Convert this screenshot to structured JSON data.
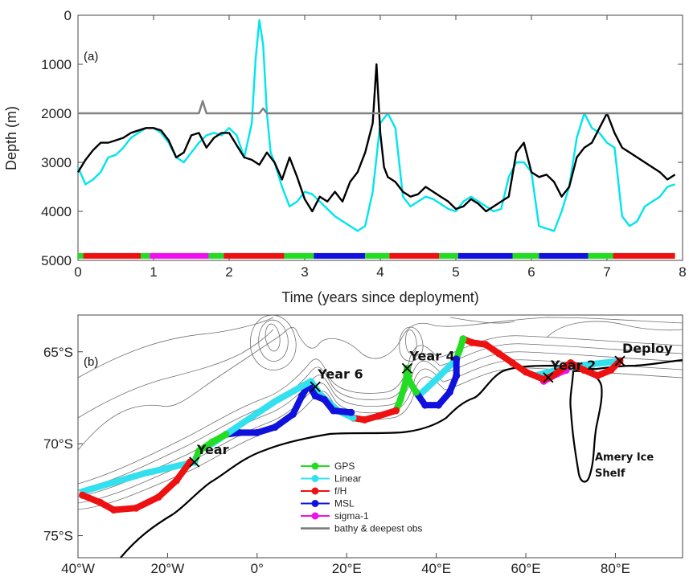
{
  "chart_data": [
    {
      "panel": "(a)",
      "type": "line",
      "xlabel": "Time (years since deployment)",
      "ylabel": "Depth (m)",
      "xlim": [
        0,
        8
      ],
      "ylim": [
        0,
        5000
      ],
      "y_reversed": true,
      "x_ticks": [
        "0",
        "1",
        "2",
        "3",
        "4",
        "5",
        "6",
        "7",
        "8"
      ],
      "y_ticks": [
        "0",
        "1000",
        "2000",
        "3000",
        "4000",
        "5000"
      ],
      "series": [
        {
          "color": "#00e5ee",
          "x": [
            0,
            0.1,
            0.2,
            0.3,
            0.4,
            0.5,
            0.6,
            0.7,
            0.8,
            0.9,
            1.0,
            1.1,
            1.2,
            1.3,
            1.4,
            1.5,
            1.6,
            1.7,
            1.8,
            1.9,
            2.0,
            2.1,
            2.2,
            2.3,
            2.35,
            2.4,
            2.45,
            2.5,
            2.55,
            2.6,
            2.7,
            2.8,
            2.9,
            3.0,
            3.1,
            3.2,
            3.3,
            3.4,
            3.5,
            3.6,
            3.7,
            3.8,
            3.9,
            4.0,
            4.1,
            4.2,
            4.3,
            4.4,
            4.5,
            4.6,
            4.7,
            4.8,
            4.9,
            5.0,
            5.1,
            5.2,
            5.3,
            5.4,
            5.5,
            5.6,
            5.7,
            5.8,
            5.9,
            6.0,
            6.1,
            6.2,
            6.3,
            6.4,
            6.5,
            6.6,
            6.7,
            6.8,
            6.9,
            7.0,
            7.1,
            7.2,
            7.3,
            7.4,
            7.5,
            7.6,
            7.7,
            7.8,
            7.9
          ],
          "y": [
            3100,
            3450,
            3350,
            3200,
            2900,
            2850,
            2700,
            2500,
            2400,
            2300,
            2300,
            2400,
            2600,
            2900,
            3000,
            2800,
            2600,
            2450,
            2400,
            2450,
            2300,
            2450,
            2900,
            2200,
            900,
            100,
            600,
            2000,
            2800,
            3000,
            3500,
            3900,
            3800,
            3600,
            3650,
            3800,
            3950,
            4100,
            4200,
            4300,
            4400,
            4300,
            3600,
            2200,
            2000,
            2300,
            3700,
            3900,
            3800,
            3700,
            3750,
            3850,
            3950,
            4000,
            3800,
            3700,
            3800,
            3900,
            4000,
            3950,
            3300,
            3000,
            3000,
            3200,
            4300,
            4350,
            4400,
            4000,
            3500,
            2500,
            2000,
            2300,
            2400,
            2600,
            2700,
            4100,
            4300,
            4200,
            3900,
            3800,
            3700,
            3500,
            3450
          ]
        },
        {
          "color": "#000000",
          "x": [
            0,
            0.1,
            0.2,
            0.3,
            0.4,
            0.5,
            0.6,
            0.7,
            0.8,
            0.9,
            1.0,
            1.1,
            1.2,
            1.3,
            1.4,
            1.5,
            1.6,
            1.7,
            1.8,
            1.9,
            2.0,
            2.1,
            2.2,
            2.3,
            2.4,
            2.5,
            2.6,
            2.7,
            2.8,
            2.9,
            3.0,
            3.1,
            3.2,
            3.3,
            3.4,
            3.5,
            3.6,
            3.7,
            3.8,
            3.9,
            3.95,
            4.0,
            4.05,
            4.1,
            4.2,
            4.3,
            4.4,
            4.5,
            4.6,
            4.7,
            4.8,
            4.9,
            5.0,
            5.1,
            5.2,
            5.3,
            5.4,
            5.5,
            5.6,
            5.7,
            5.8,
            5.9,
            6.0,
            6.1,
            6.2,
            6.3,
            6.4,
            6.5,
            6.6,
            6.7,
            6.8,
            6.9,
            7.0,
            7.1,
            7.2,
            7.3,
            7.4,
            7.5,
            7.6,
            7.7,
            7.8,
            7.9
          ],
          "y": [
            3200,
            2950,
            2750,
            2600,
            2600,
            2550,
            2500,
            2400,
            2350,
            2300,
            2300,
            2350,
            2550,
            2900,
            2800,
            2450,
            2400,
            2700,
            2500,
            2400,
            2400,
            2650,
            2900,
            2950,
            3050,
            2800,
            3000,
            3350,
            2900,
            3300,
            3750,
            4000,
            3700,
            3800,
            3600,
            3800,
            3400,
            3200,
            2800,
            2200,
            1000,
            2400,
            3100,
            3300,
            3400,
            3600,
            3700,
            3650,
            3500,
            3600,
            3700,
            3800,
            3950,
            3900,
            3750,
            3850,
            4000,
            3900,
            3800,
            3700,
            2800,
            2600,
            3200,
            3300,
            3250,
            3400,
            3700,
            3500,
            2900,
            2700,
            2600,
            2300,
            2000,
            2400,
            2700,
            2800,
            2900,
            3000,
            3100,
            3200,
            3350,
            3250
          ]
        },
        {
          "color": "#808080",
          "x": [
            0,
            1.6,
            1.65,
            1.7,
            1.75,
            2.4,
            2.45,
            2.5,
            8
          ],
          "y": [
            2000,
            2000,
            1750,
            2000,
            2000,
            2000,
            1900,
            2000,
            2000
          ]
        }
      ],
      "mode_bar": {
        "depth": 4900,
        "segments": [
          {
            "start": 0.0,
            "end": 0.07,
            "color": "#22dd22"
          },
          {
            "start": 0.07,
            "end": 0.83,
            "color": "#ee1111"
          },
          {
            "start": 0.83,
            "end": 0.95,
            "color": "#22dd22"
          },
          {
            "start": 0.95,
            "end": 1.73,
            "color": "#ee11ee"
          },
          {
            "start": 1.73,
            "end": 1.93,
            "color": "#22dd22"
          },
          {
            "start": 1.93,
            "end": 2.73,
            "color": "#ee1111"
          },
          {
            "start": 2.73,
            "end": 3.12,
            "color": "#22dd22"
          },
          {
            "start": 3.12,
            "end": 3.8,
            "color": "#1111dd"
          },
          {
            "start": 3.8,
            "end": 4.12,
            "color": "#22dd22"
          },
          {
            "start": 4.12,
            "end": 4.78,
            "color": "#ee1111"
          },
          {
            "start": 4.78,
            "end": 5.03,
            "color": "#22dd22"
          },
          {
            "start": 5.03,
            "end": 5.75,
            "color": "#1111dd"
          },
          {
            "start": 5.75,
            "end": 6.1,
            "color": "#22dd22"
          },
          {
            "start": 6.1,
            "end": 6.75,
            "color": "#1111dd"
          },
          {
            "start": 6.75,
            "end": 7.08,
            "color": "#22dd22"
          },
          {
            "start": 7.08,
            "end": 7.9,
            "color": "#ee1111"
          }
        ]
      }
    },
    {
      "panel": "(b)",
      "type": "scatter",
      "xlim": [
        -40,
        95
      ],
      "ylim": [
        -76.2,
        -63.0
      ],
      "x_ticks": [
        "40°W",
        "20°W",
        "0°",
        "20°E",
        "40°E",
        "60°E",
        "80°E"
      ],
      "y_ticks": [
        "65°S",
        "70°S",
        "75°S"
      ],
      "annotations": [
        "Deploy",
        "Year 2",
        "Year 4",
        "Year 6",
        "Year",
        "Amery Ice\nShelf"
      ],
      "markers": [
        {
          "label": "Deploy",
          "lon": 81,
          "lat": -65.5
        },
        {
          "label": "Year 2",
          "lon": 65,
          "lat": -66.4
        },
        {
          "label": "Year 4",
          "lon": 33.5,
          "lat": -65.9
        },
        {
          "label": "Year 6",
          "lon": 13,
          "lat": -66.9
        },
        {
          "label": "Year",
          "lon": -14,
          "lat": -71.0
        }
      ],
      "legend": [
        {
          "label": "GPS",
          "color": "#22dd22",
          "style": "marker"
        },
        {
          "label": "Linear",
          "color": "#33e0ee",
          "style": "marker"
        },
        {
          "label": "f/H",
          "color": "#ee1111",
          "style": "marker"
        },
        {
          "label": "MSL",
          "color": "#1111dd",
          "style": "marker"
        },
        {
          "label": "sigma-1",
          "color": "#ee11ee",
          "style": "marker"
        },
        {
          "label": "bathy & deepest obs",
          "color": "#777777",
          "style": "line"
        }
      ],
      "track": [
        {
          "mode": "linear",
          "color": "#33e0ee",
          "pts": [
            [
              81,
              -65.5
            ],
            [
              70,
              -65.8
            ],
            [
              62,
              -66.3
            ]
          ]
        },
        {
          "mode": "sigma1",
          "color": "#ee11ee",
          "pts": [
            [
              64,
              -66.6
            ],
            [
              67,
              -66.2
            ],
            [
              69,
              -66.0
            ]
          ]
        },
        {
          "mode": "fH",
          "color": "#ee1111",
          "pts": [
            [
              81,
              -65.5
            ],
            [
              79,
              -66.0
            ],
            [
              76,
              -66.3
            ],
            [
              73,
              -66.0
            ],
            [
              70,
              -65.6
            ],
            [
              66,
              -66.3
            ],
            [
              64,
              -66.5
            ],
            [
              60,
              -66.1
            ],
            [
              57,
              -65.6
            ],
            [
              54,
              -65.1
            ],
            [
              51,
              -64.6
            ],
            [
              48,
              -64.5
            ],
            [
              46,
              -64.3
            ]
          ]
        },
        {
          "mode": "gps",
          "color": "#22dd22",
          "pts": [
            [
              46,
              -64.3
            ],
            [
              45.2,
              -64.9
            ],
            [
              44.5,
              -65.4
            ]
          ]
        },
        {
          "mode": "linear",
          "color": "#33e0ee",
          "pts": [
            [
              44.5,
              -65.4
            ],
            [
              40,
              -66.5
            ],
            [
              36,
              -67.4
            ]
          ]
        },
        {
          "mode": "msl",
          "color": "#1111dd",
          "pts": [
            [
              44.5,
              -65.4
            ],
            [
              44.5,
              -66.3
            ],
            [
              43,
              -67.2
            ],
            [
              40.5,
              -67.9
            ],
            [
              37.5,
              -67.9
            ],
            [
              35.5,
              -67.2
            ]
          ]
        },
        {
          "mode": "gps",
          "color": "#22dd22",
          "pts": [
            [
              35.5,
              -67.2
            ],
            [
              34,
              -66.6
            ],
            [
              33.5,
              -65.9
            ],
            [
              33.2,
              -66.6
            ],
            [
              32,
              -67.6
            ],
            [
              31,
              -68.2
            ]
          ]
        },
        {
          "mode": "fH",
          "color": "#ee1111",
          "pts": [
            [
              31,
              -68.2
            ],
            [
              27,
              -68.5
            ],
            [
              24,
              -68.7
            ],
            [
              21.5,
              -68.6
            ]
          ]
        },
        {
          "mode": "linear",
          "color": "#33e0ee",
          "pts": [
            [
              21.5,
              -68.6
            ],
            [
              18,
              -68.2
            ],
            [
              14,
              -67.3
            ],
            [
              12,
              -66.6
            ]
          ]
        },
        {
          "mode": "msl",
          "color": "#1111dd",
          "pts": [
            [
              21,
              -68.3
            ],
            [
              17,
              -68.2
            ],
            [
              15,
              -67.6
            ],
            [
              13,
              -67.4
            ],
            [
              11.5,
              -66.8
            ],
            [
              10,
              -67.4
            ],
            [
              8,
              -68.4
            ],
            [
              4,
              -69.1
            ],
            [
              0,
              -69.4
            ],
            [
              -4,
              -69.4
            ],
            [
              -7,
              -69.5
            ]
          ]
        },
        {
          "mode": "linear",
          "color": "#33e0ee",
          "pts": [
            [
              12,
              -66.6
            ],
            [
              4,
              -67.7
            ],
            [
              -4,
              -69.0
            ],
            [
              -10,
              -70.0
            ]
          ]
        },
        {
          "mode": "gps",
          "color": "#22dd22",
          "pts": [
            [
              -7,
              -69.5
            ],
            [
              -10,
              -69.9
            ],
            [
              -13,
              -70.4
            ],
            [
              -14,
              -71.0
            ]
          ]
        },
        {
          "mode": "linear",
          "color": "#33e0ee",
          "pts": [
            [
              -14,
              -71.0
            ],
            [
              -25,
              -71.6
            ],
            [
              -39,
              -72.6
            ]
          ]
        },
        {
          "mode": "fH",
          "color": "#ee1111",
          "pts": [
            [
              -15,
              -71.0
            ],
            [
              -18,
              -72.0
            ],
            [
              -22,
              -72.9
            ],
            [
              -27,
              -73.5
            ],
            [
              -32,
              -73.6
            ],
            [
              -35,
              -73.2
            ],
            [
              -39,
              -72.8
            ]
          ]
        }
      ]
    }
  ]
}
